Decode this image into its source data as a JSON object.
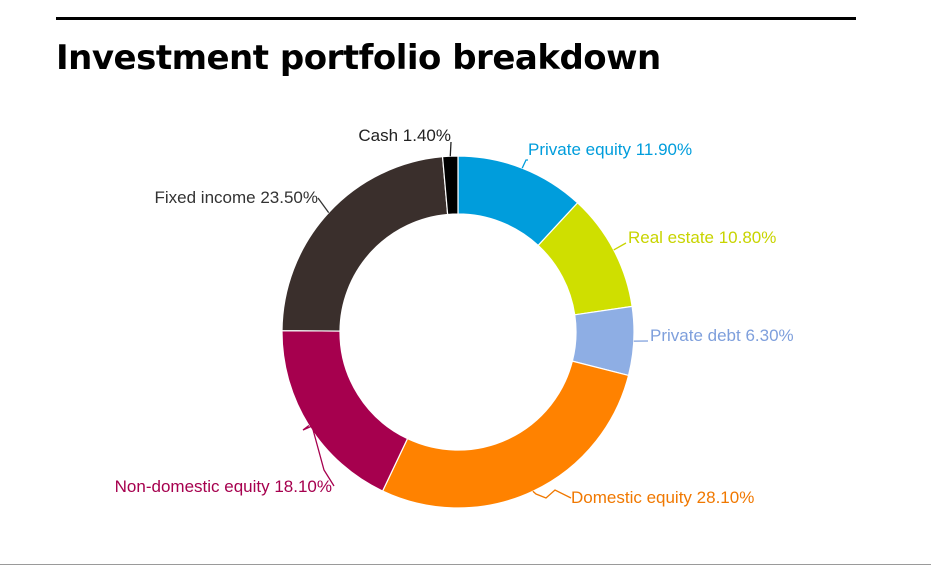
{
  "title": "Investment portfolio breakdown",
  "chart_data": {
    "type": "pie",
    "style": "donut",
    "unit": "%",
    "segments": [
      {
        "name": "Private equity",
        "value": 11.9,
        "label": "Private equity 11.90%",
        "color": "#009ddc",
        "label_color": "#009ddc"
      },
      {
        "name": "Real estate",
        "value": 10.8,
        "label": "Real estate 10.80%",
        "color": "#cfdf00",
        "label_color": "#c8d400"
      },
      {
        "name": "Private debt",
        "value": 6.3,
        "label": "Private debt 6.30%",
        "color": "#8eaee4",
        "label_color": "#7e9fdc"
      },
      {
        "name": "Domestic equity",
        "value": 28.1,
        "label": "Domestic equity 28.10%",
        "color": "#ff8200",
        "label_color": "#f07800"
      },
      {
        "name": "Non-domestic equity",
        "value": 18.1,
        "label": "Non-domestic equity 18.10%",
        "color": "#a6004e",
        "label_color": "#a6004e"
      },
      {
        "name": "Fixed income",
        "value": 23.5,
        "label": "Fixed income 23.50%",
        "color": "#3a2f2c",
        "label_color": "#333333"
      },
      {
        "name": "Cash",
        "value": 1.4,
        "label": "Cash 1.40%",
        "color": "#000000",
        "label_color": "#222222"
      }
    ]
  }
}
